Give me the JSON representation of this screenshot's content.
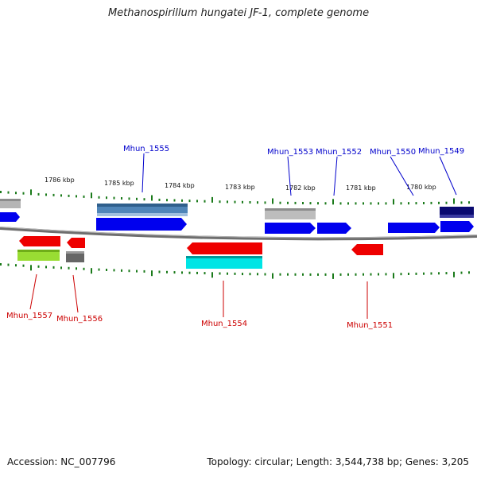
{
  "title": "Methanospirillum hungatei JF-1, complete genome",
  "footer": {
    "accession": "Accession: NC_007796",
    "summary": "Topology: circular; Length: 3,544,738 bp; Genes: 3,205"
  },
  "scale_labels": [
    "1786 kbp",
    "1785 kbp",
    "1784 kbp",
    "1783 kbp",
    "1782 kbp",
    "1781 kbp",
    "1780 kbp"
  ],
  "genes_top": [
    "Mhun_1555",
    "Mhun_1553",
    "Mhun_1552",
    "Mhun_1550",
    "Mhun_1549"
  ],
  "genes_bottom": [
    "Mhun_1557",
    "Mhun_1556",
    "Mhun_1554",
    "Mhun_1551"
  ],
  "colors": {
    "forward": "#0000ee",
    "reverse": "#ee0000",
    "backbone": "#777777",
    "tick": "#1a7a1a",
    "steelblue": "#4a7fb0",
    "grey": "#b0b0b0",
    "navy": "#0a0a70",
    "lime": "#99dd33",
    "darkgrey": "#666666",
    "cyan": "#00e5e5"
  }
}
